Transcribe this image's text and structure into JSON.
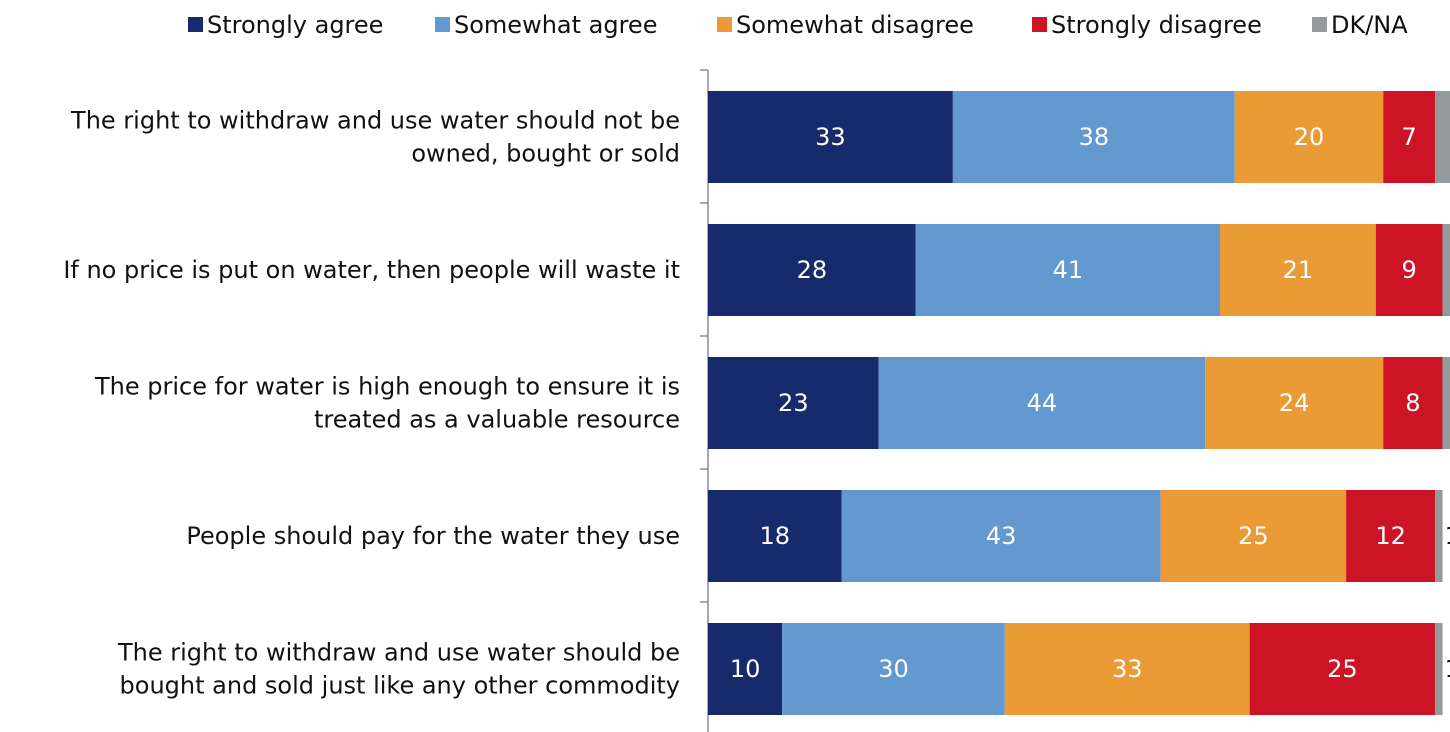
{
  "chart_data": {
    "type": "bar",
    "orientation": "horizontal",
    "stacked": true,
    "title": "",
    "xlabel": "",
    "ylabel": "",
    "xlim": [
      0,
      100
    ],
    "grid": false,
    "legend_position": "top",
    "categories": [
      [
        "The right to withdraw and use water should not be",
        "owned, bought or sold"
      ],
      [
        "If no price is put on water, then people will waste it"
      ],
      [
        "The price for water is high enough to ensure it is",
        "treated as a valuable resource"
      ],
      [
        "People should pay for the water they use"
      ],
      [
        "The right to withdraw and use water should be",
        "bought and sold just like any other commodity"
      ]
    ],
    "series": [
      {
        "name": "Strongly agree",
        "color": "#172a6b",
        "label_color": "#ffffff",
        "values": [
          33,
          28,
          23,
          18,
          10
        ]
      },
      {
        "name": "Somewhat agree",
        "color": "#6399cf",
        "label_color": "#ffffff",
        "values": [
          38,
          41,
          44,
          43,
          30
        ]
      },
      {
        "name": "Somewhat disagree",
        "color": "#eb9b35",
        "label_color": "#ffffff",
        "values": [
          20,
          21,
          24,
          25,
          33
        ]
      },
      {
        "name": "Strongly disagree",
        "color": "#cc1426",
        "label_color": "#ffffff",
        "values": [
          7,
          9,
          8,
          12,
          25
        ]
      },
      {
        "name": "DK/NA",
        "color": "#939a9b",
        "label_color": "#111111",
        "values": [
          2,
          1,
          2,
          1,
          1
        ]
      }
    ]
  }
}
